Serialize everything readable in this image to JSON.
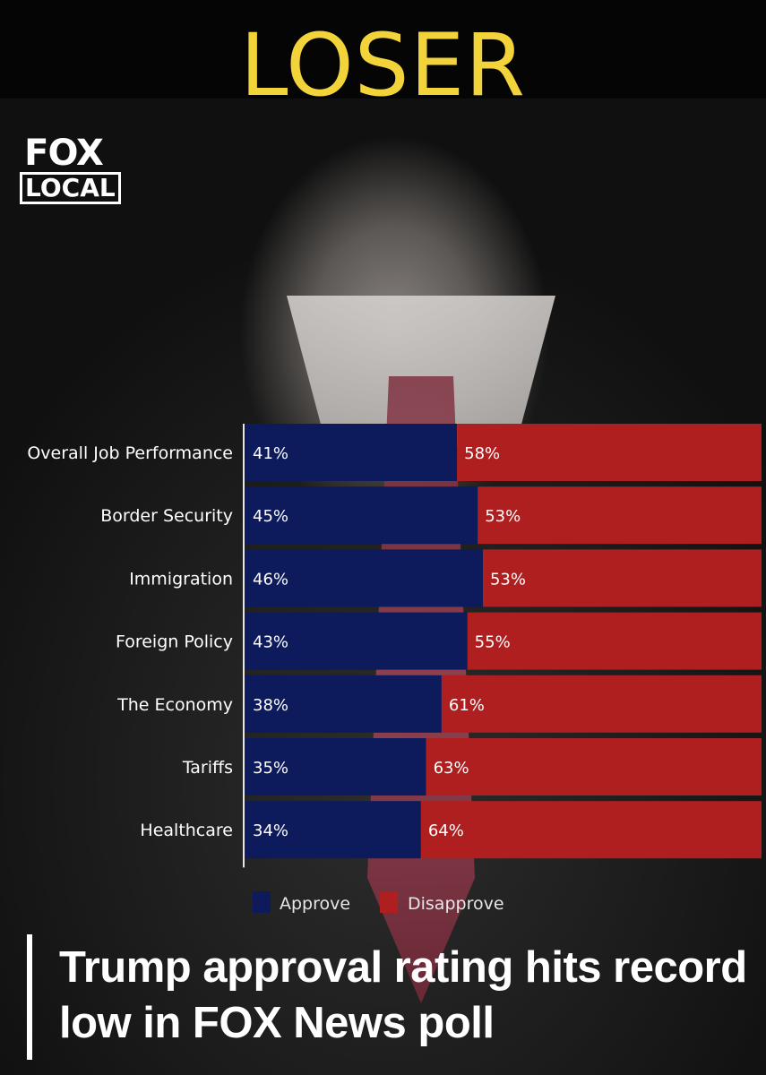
{
  "banner": {
    "text": "LOSER"
  },
  "logo": {
    "top": "FOX",
    "bottom": "LOCAL"
  },
  "headline": {
    "text": "Trump approval rating hits record low in FOX News poll"
  },
  "colors": {
    "approve": "#0d1a5c",
    "disapprove": "#b01f1f",
    "banner_text": "#f2d43a",
    "label_text": "#ffffff"
  },
  "chart_data": {
    "type": "bar",
    "orientation": "horizontal",
    "stacked": true,
    "categories": [
      "Overall Job Performance",
      "Border Security",
      "Immigration",
      "Foreign Policy",
      "The Economy",
      "Tariffs",
      "Healthcare"
    ],
    "series": [
      {
        "name": "Approve",
        "values": [
          41,
          45,
          46,
          43,
          38,
          35,
          34
        ]
      },
      {
        "name": "Disapprove",
        "values": [
          58,
          53,
          53,
          55,
          61,
          63,
          64
        ]
      }
    ],
    "value_labels": {
      "Approve": [
        "41%",
        "45%",
        "46%",
        "43%",
        "38%",
        "35%",
        "34%"
      ],
      "Disapprove": [
        "58%",
        "53%",
        "53%",
        "55%",
        "61%",
        "63%",
        "64%"
      ]
    },
    "xlim": [
      0,
      100
    ],
    "legend_position": "bottom",
    "grid": false
  }
}
